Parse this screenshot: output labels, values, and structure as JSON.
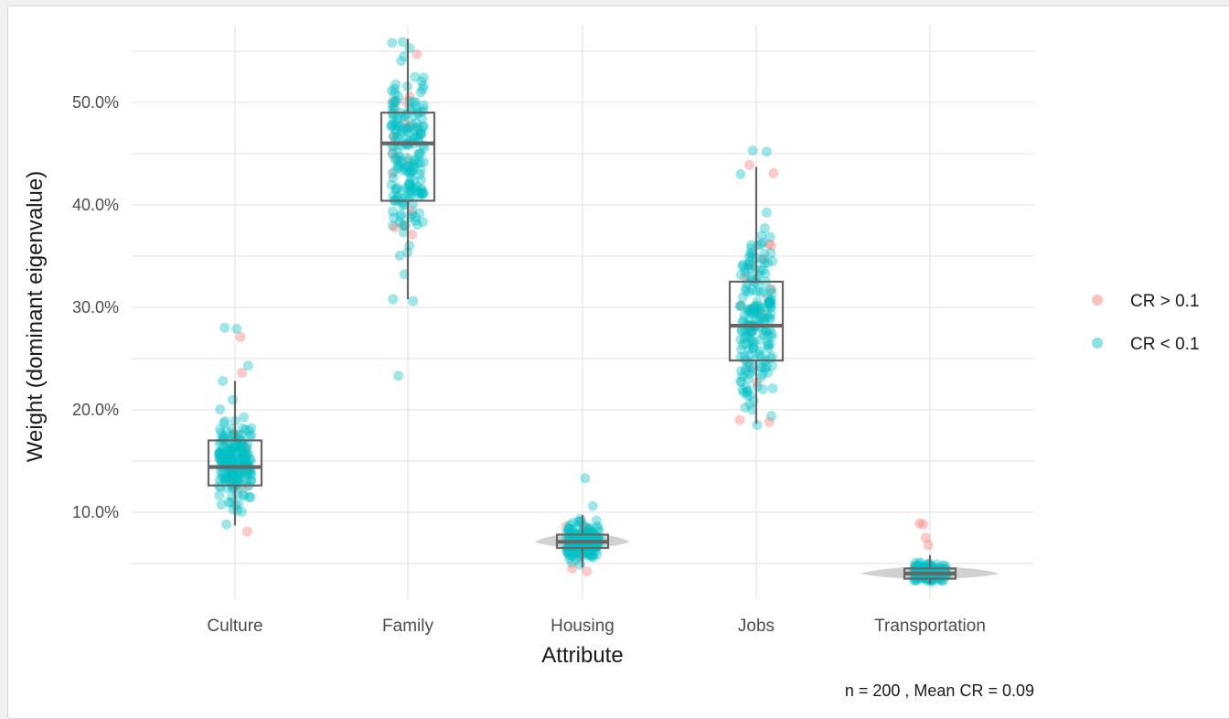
{
  "chart_data": {
    "type": "boxplot-jitter",
    "title": "",
    "xlabel": "Attribute",
    "ylabel": "Weight (dominant eigenvalue)",
    "y_tick_format": "percent",
    "y_ticks": [
      0.1,
      0.2,
      0.3,
      0.4,
      0.5
    ],
    "y_tick_labels": [
      "10.0%",
      "20.0%",
      "30.0%",
      "40.0%",
      "50.0%"
    ],
    "ylim": [
      0.015,
      0.575
    ],
    "grid": true,
    "categories": [
      "Culture",
      "Family",
      "Housing",
      "Jobs",
      "Transportation"
    ],
    "boxes": [
      {
        "category": "Culture",
        "q1": 0.126,
        "median": 0.144,
        "q3": 0.17,
        "whisker_low": 0.087,
        "whisker_high": 0.228,
        "violin_width": 0
      },
      {
        "category": "Family",
        "q1": 0.404,
        "median": 0.46,
        "q3": 0.49,
        "whisker_low": 0.308,
        "whisker_high": 0.562,
        "violin_width": 0
      },
      {
        "category": "Housing",
        "q1": 0.065,
        "median": 0.071,
        "q3": 0.078,
        "whisker_low": 0.046,
        "whisker_high": 0.097,
        "violin_width": 0.55
      },
      {
        "category": "Jobs",
        "q1": 0.248,
        "median": 0.282,
        "q3": 0.325,
        "whisker_low": 0.186,
        "whisker_high": 0.437,
        "violin_width": 0
      },
      {
        "category": "Transportation",
        "q1": 0.035,
        "median": 0.04,
        "q3": 0.045,
        "whisker_low": 0.03,
        "whisker_high": 0.058,
        "violin_width": 0.8
      }
    ],
    "point_distributions": [
      {
        "category": "Culture",
        "center": 0.148,
        "spread": 0.028,
        "min": 0.08,
        "max": 0.245,
        "n_ok": 185,
        "n_bad": 15
      },
      {
        "category": "Family",
        "center": 0.45,
        "spread": 0.055,
        "min": 0.3,
        "max": 0.56,
        "n_ok": 185,
        "n_bad": 15
      },
      {
        "category": "Housing",
        "center": 0.072,
        "spread": 0.011,
        "min": 0.04,
        "max": 0.105,
        "n_ok": 185,
        "n_bad": 15
      },
      {
        "category": "Jobs",
        "center": 0.285,
        "spread": 0.055,
        "min": 0.185,
        "max": 0.42,
        "n_ok": 185,
        "n_bad": 15
      },
      {
        "category": "Transportation",
        "center": 0.041,
        "spread": 0.005,
        "min": 0.03,
        "max": 0.062,
        "n_ok": 185,
        "n_bad": 15
      }
    ],
    "notable_points": [
      {
        "category": "Culture",
        "y": 0.28,
        "group": "CR < 0.1",
        "jitter": -0.12
      },
      {
        "category": "Culture",
        "y": 0.279,
        "group": "CR < 0.1",
        "jitter": 0.02
      },
      {
        "category": "Culture",
        "y": 0.271,
        "group": "CR > 0.1",
        "jitter": 0.06
      },
      {
        "category": "Culture",
        "y": 0.243,
        "group": "CR < 0.1",
        "jitter": 0.15
      },
      {
        "category": "Culture",
        "y": 0.236,
        "group": "CR > 0.1",
        "jitter": 0.08
      },
      {
        "category": "Culture",
        "y": 0.228,
        "group": "CR < 0.1",
        "jitter": -0.14
      },
      {
        "category": "Culture",
        "y": 0.081,
        "group": "CR > 0.1",
        "jitter": 0.14
      },
      {
        "category": "Culture",
        "y": 0.088,
        "group": "CR < 0.1",
        "jitter": -0.1
      },
      {
        "category": "Family",
        "y": 0.233,
        "group": "CR < 0.1",
        "jitter": -0.11
      },
      {
        "category": "Family",
        "y": 0.306,
        "group": "CR < 0.1",
        "jitter": 0.06
      },
      {
        "category": "Family",
        "y": 0.308,
        "group": "CR < 0.1",
        "jitter": -0.17
      },
      {
        "category": "Family",
        "y": 0.559,
        "group": "CR < 0.1",
        "jitter": -0.06
      },
      {
        "category": "Family",
        "y": 0.553,
        "group": "CR < 0.1",
        "jitter": 0.02
      },
      {
        "category": "Family",
        "y": 0.378,
        "group": "CR > 0.1",
        "jitter": -0.15
      },
      {
        "category": "Family",
        "y": 0.371,
        "group": "CR > 0.1",
        "jitter": 0.05
      },
      {
        "category": "Housing",
        "y": 0.133,
        "group": "CR < 0.1",
        "jitter": 0.03
      },
      {
        "category": "Housing",
        "y": 0.106,
        "group": "CR < 0.1",
        "jitter": 0.12
      },
      {
        "category": "Housing",
        "y": 0.042,
        "group": "CR > 0.1",
        "jitter": 0.05
      },
      {
        "category": "Housing",
        "y": 0.045,
        "group": "CR > 0.1",
        "jitter": -0.12
      },
      {
        "category": "Jobs",
        "y": 0.453,
        "group": "CR < 0.1",
        "jitter": -0.04
      },
      {
        "category": "Jobs",
        "y": 0.452,
        "group": "CR < 0.1",
        "jitter": 0.12
      },
      {
        "category": "Jobs",
        "y": 0.439,
        "group": "CR > 0.1",
        "jitter": -0.08
      },
      {
        "category": "Jobs",
        "y": 0.431,
        "group": "CR > 0.1",
        "jitter": 0.2
      },
      {
        "category": "Jobs",
        "y": 0.43,
        "group": "CR < 0.1",
        "jitter": -0.18
      },
      {
        "category": "Jobs",
        "y": 0.19,
        "group": "CR > 0.1",
        "jitter": -0.19
      },
      {
        "category": "Jobs",
        "y": 0.188,
        "group": "CR > 0.1",
        "jitter": 0.15
      },
      {
        "category": "Jobs",
        "y": 0.185,
        "group": "CR < 0.1",
        "jitter": 0.01
      },
      {
        "category": "Transportation",
        "y": 0.089,
        "group": "CR > 0.1",
        "jitter": -0.12
      },
      {
        "category": "Transportation",
        "y": 0.088,
        "group": "CR > 0.1",
        "jitter": -0.08
      },
      {
        "category": "Transportation",
        "y": 0.075,
        "group": "CR > 0.1",
        "jitter": -0.05
      },
      {
        "category": "Transportation",
        "y": 0.068,
        "group": "CR > 0.1",
        "jitter": -0.02
      }
    ],
    "legend": {
      "placement": "right",
      "entries": [
        {
          "label": "CR > 0.1",
          "color": "#f8766d"
        },
        {
          "label": "CR < 0.1",
          "color": "#00bfc4"
        }
      ]
    },
    "caption": "n = 200 , Mean CR = 0.09",
    "colors": {
      "box": "#666666",
      "violin": "#cccccc",
      "grid": "#ebebeb",
      "cr_high": "#f8766d",
      "cr_low": "#00bfc4"
    }
  }
}
